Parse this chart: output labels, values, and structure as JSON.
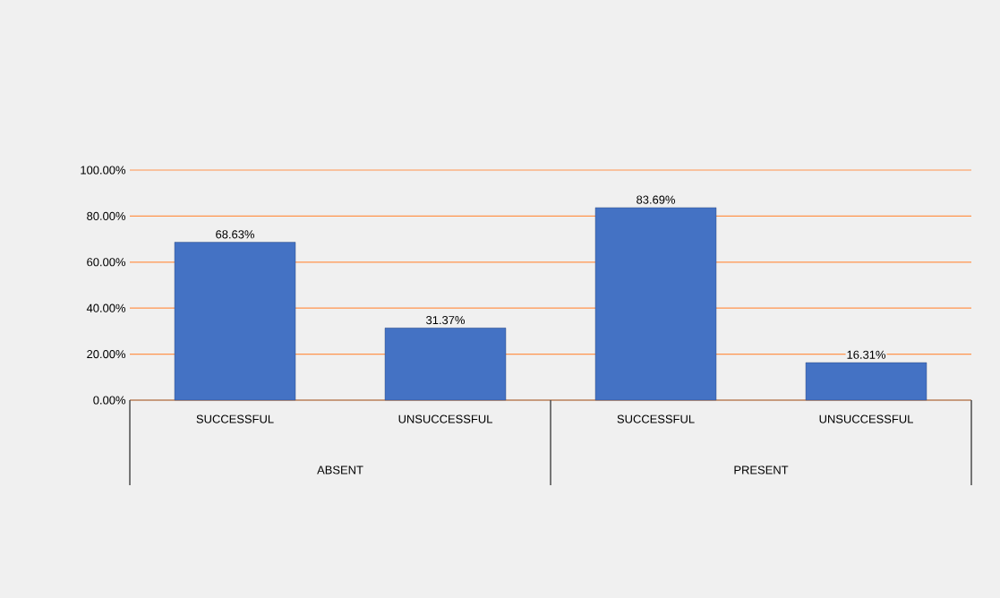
{
  "chart_data": {
    "type": "bar",
    "categories": [
      "SUCCESSFUL",
      "UNSUCCESSFUL",
      "SUCCESSFUL",
      "UNSUCCESSFUL"
    ],
    "values": [
      68.63,
      31.37,
      83.69,
      16.31
    ],
    "value_labels": [
      "68.63%",
      "31.37%",
      "83.69%",
      "16.31%"
    ],
    "color": "#4472c4",
    "ylim": [
      0,
      100
    ],
    "yticks": [
      {
        "value": 0,
        "label": "0.00%"
      },
      {
        "value": 20,
        "label": "20.00%"
      },
      {
        "value": 40,
        "label": "40.00%"
      },
      {
        "value": 60,
        "label": "60.00%"
      },
      {
        "value": 80,
        "label": "80.00%"
      },
      {
        "value": 100,
        "label": "100.00%"
      }
    ],
    "grid": "y",
    "annotations": [
      "ABSENT",
      "PRESENT"
    ]
  }
}
